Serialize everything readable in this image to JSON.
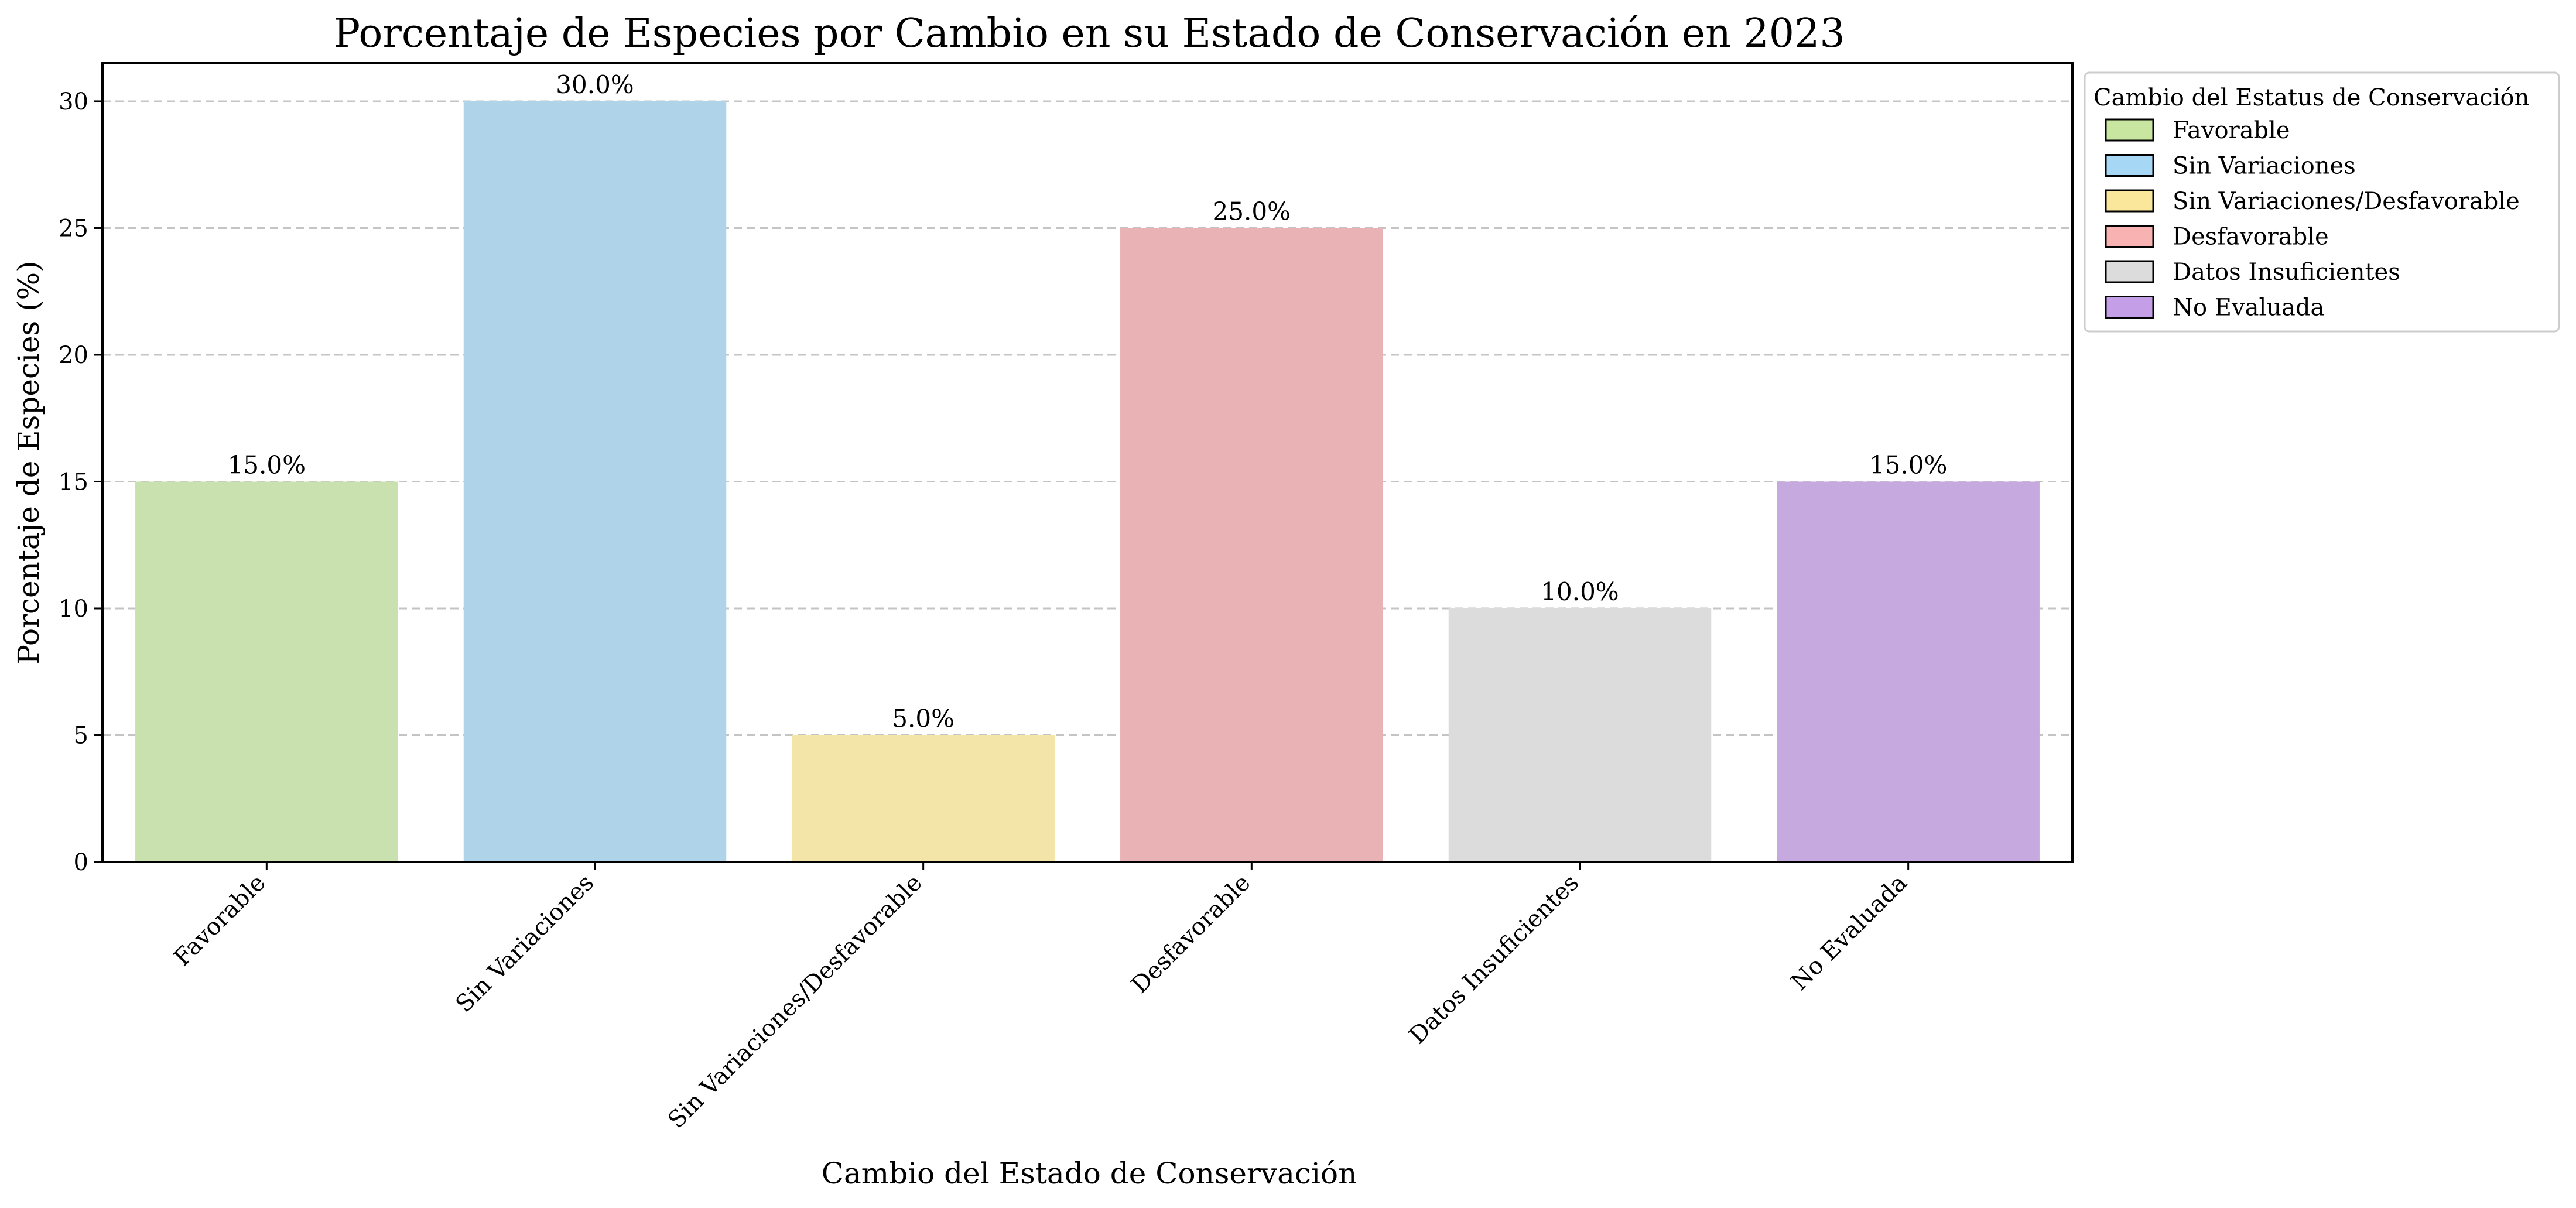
{
  "chart_data": {
    "type": "bar",
    "title": "Porcentaje de Especies por Cambio en su Estado de Conservación en 2023",
    "xlabel": "Cambio del Estado de Conservación",
    "ylabel": "Porcentaje de Especies (%)",
    "categories": [
      "Favorable",
      "Sin Variaciones",
      "Sin Variaciones/Desfavorable",
      "Desfavorable",
      "Datos Insuficientes",
      "No Evaluada"
    ],
    "values": [
      15,
      30,
      5,
      25,
      10,
      15
    ],
    "data_labels": [
      "15.0%",
      "30.0%",
      "5.0%",
      "25.0%",
      "10.0%",
      "15.0%"
    ],
    "colors": [
      "#c9e0af",
      "#afd4e9",
      "#f3e4a7",
      "#e9b2b4",
      "#dcdcdc",
      "#c6aadf"
    ],
    "legend_colors": [
      "#c8e6a0",
      "#a6d8f6",
      "#fbe79c",
      "#f9b2b2",
      "#dcdcdc",
      "#c49ee6"
    ],
    "ylim": [
      0,
      31.5
    ],
    "yticks": [
      0,
      5,
      10,
      15,
      20,
      25,
      30
    ],
    "grid": "y dashed",
    "legend": {
      "title": "Cambio del Estatus de Conservación",
      "placement": "outside top-right",
      "entries": [
        "Favorable",
        "Sin Variaciones",
        "Sin Variaciones/Desfavorable",
        "Desfavorable",
        "Datos Insuficientes",
        "No Evaluada"
      ]
    }
  }
}
